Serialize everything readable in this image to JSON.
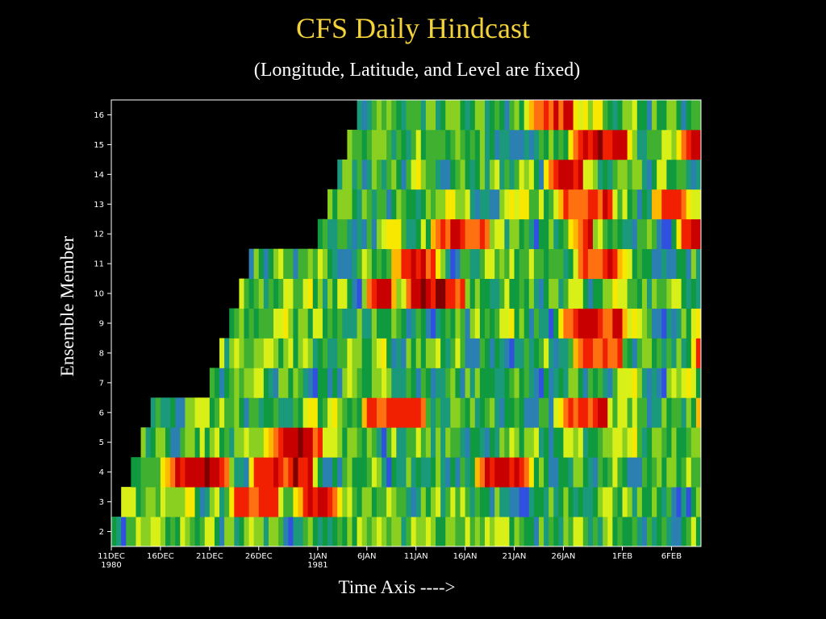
{
  "slide": {
    "title": "CFS Daily Hindcast",
    "subtitle": "(Longitude, Latitude, and Level are fixed)",
    "title_color": "#f4d33a",
    "background": "#000000"
  },
  "chart_data": {
    "type": "heatmap",
    "title": "CFS Daily Hindcast",
    "subtitle": "(Longitude, Latitude, and Level are fixed)",
    "xlabel": "Time Axis ---->",
    "ylabel": "Ensemble Member",
    "x_range": [
      "1980-12-11",
      "1981-02-09"
    ],
    "y_range": [
      1.5,
      16.5
    ],
    "x_ticks": [
      {
        "date": "1980-12-11",
        "label": "11DEC",
        "sublabel": "1980"
      },
      {
        "date": "1980-12-16",
        "label": "16DEC",
        "sublabel": ""
      },
      {
        "date": "1980-12-21",
        "label": "21DEC",
        "sublabel": ""
      },
      {
        "date": "1980-12-26",
        "label": "26DEC",
        "sublabel": ""
      },
      {
        "date": "1981-01-01",
        "label": "1JAN",
        "sublabel": "1981"
      },
      {
        "date": "1981-01-06",
        "label": "6JAN",
        "sublabel": ""
      },
      {
        "date": "1981-01-11",
        "label": "11JAN",
        "sublabel": ""
      },
      {
        "date": "1981-01-16",
        "label": "16JAN",
        "sublabel": ""
      },
      {
        "date": "1981-01-21",
        "label": "21JAN",
        "sublabel": ""
      },
      {
        "date": "1981-01-26",
        "label": "26JAN",
        "sublabel": ""
      },
      {
        "date": "1981-02-01",
        "label": "1FEB",
        "sublabel": ""
      },
      {
        "date": "1981-02-06",
        "label": "6FEB",
        "sublabel": ""
      }
    ],
    "y_ticks": [
      2,
      3,
      4,
      5,
      6,
      7,
      8,
      9,
      10,
      11,
      12,
      13,
      14,
      15,
      16
    ],
    "members": [
      {
        "member": 2,
        "start": "1980-12-11"
      },
      {
        "member": 3,
        "start": "1980-12-12"
      },
      {
        "member": 4,
        "start": "1980-12-13"
      },
      {
        "member": 5,
        "start": "1980-12-14"
      },
      {
        "member": 6,
        "start": "1980-12-15"
      },
      {
        "member": 7,
        "start": "1980-12-21"
      },
      {
        "member": 8,
        "start": "1980-12-22"
      },
      {
        "member": 9,
        "start": "1980-12-23"
      },
      {
        "member": 10,
        "start": "1980-12-24"
      },
      {
        "member": 11,
        "start": "1980-12-25"
      },
      {
        "member": 12,
        "start": "1981-01-01"
      },
      {
        "member": 13,
        "start": "1981-01-02"
      },
      {
        "member": 14,
        "start": "1981-01-03"
      },
      {
        "member": 15,
        "start": "1981-01-04"
      },
      {
        "member": 16,
        "start": "1981-01-05"
      }
    ],
    "colormap": [
      "#a000f0",
      "#7030ff",
      "#3050e0",
      "#2a80b0",
      "#1a9a7a",
      "#109a40",
      "#40b030",
      "#8ad020",
      "#d8f018",
      "#f8e800",
      "#ffb800",
      "#ff7010",
      "#f02000",
      "#c80000",
      "#800000"
    ],
    "grid": false,
    "legend": "none"
  }
}
